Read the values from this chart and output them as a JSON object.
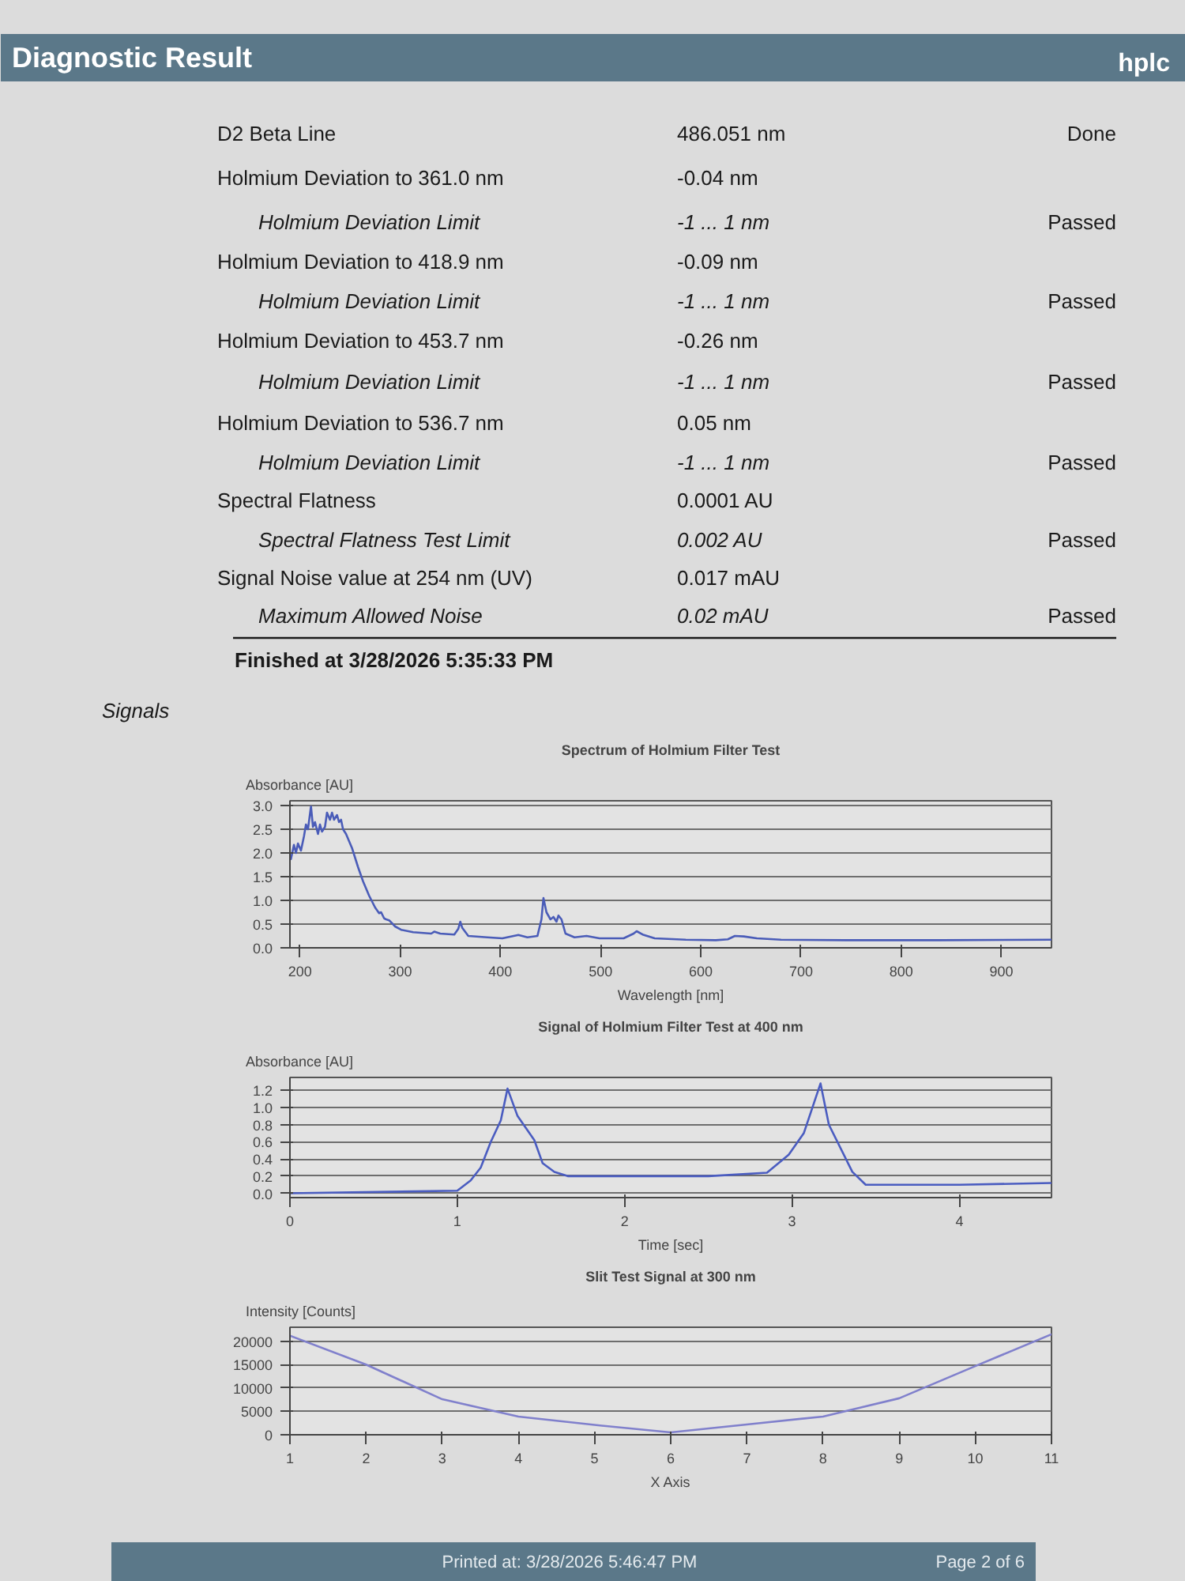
{
  "chart_data": [
    {
      "type": "other",
      "title": "Diagnostic Result",
      "subtitle": "hplc",
      "annotations": [
        "D2 Beta Line",
        "486.051 nm",
        "Done",
        "Holmium Deviation to 361.0 nm",
        "-0.04 nm",
        "Holmium Deviation Limit",
        "-1 ... 1 nm",
        "Passed",
        "Holmium Deviation to 418.9 nm",
        "-0.09 nm",
        "Holmium Deviation Limit",
        "-1 ... 1 nm",
        "Passed",
        "Holmium Deviation to 453.7 nm",
        "-0.26 nm",
        "Holmium Deviation Limit",
        "-1 ... 1 nm",
        "Passed",
        "Holmium Deviation to 536.7 nm",
        "0.05 nm",
        "Holmium Deviation Limit",
        "-1 ... 1 nm",
        "Passed",
        "Spectral Flatness",
        "0.0001 AU",
        "Spectral Flatness Test Limit",
        "0.002 AU",
        "Passed",
        "Signal Noise value at 254 nm (UV)",
        "0.017 mAU",
        "Maximum Allowed Noise",
        "0.02 mAU",
        "Passed",
        "Finished at 3/28/2026 5:35:33 PM",
        "Signals"
      ]
    },
    {
      "type": "line",
      "title": "Spectrum of Holmium Filter Test",
      "xlabel": "Wavelength [nm]",
      "ylabel": "Absorbance [AU]",
      "xlim": [
        190,
        950
      ],
      "ylim": [
        0,
        3.1
      ],
      "xticks": [
        200,
        300,
        400,
        500,
        600,
        700,
        800,
        900
      ],
      "yticks": [
        {
          "value": 0,
          "label": "0.0"
        },
        0.5,
        {
          "value": 1,
          "label": "1.0"
        },
        1.5,
        {
          "value": 2,
          "label": "2.0"
        },
        2.5,
        {
          "value": 3,
          "label": "3.0"
        }
      ],
      "grid": "y",
      "x": [
        191,
        194,
        196,
        198,
        201,
        204,
        206,
        208,
        211,
        213,
        215,
        218,
        220,
        222,
        225,
        227,
        230,
        232,
        234,
        237,
        239,
        241,
        243,
        246,
        252,
        258,
        263,
        269,
        275,
        279,
        281,
        284,
        286,
        289,
        295,
        301,
        313,
        331,
        334,
        340,
        354,
        358,
        360,
        362,
        368,
        387,
        402,
        418,
        427,
        437,
        441,
        443,
        446,
        450,
        453,
        456,
        458,
        461,
        465,
        474,
        486,
        499,
        523,
        533,
        536,
        542,
        554,
        585,
        615,
        627,
        634,
        643,
        656,
        680,
        744,
        839,
        950
      ],
      "series": [
        {
          "color": "#4a5cb8",
          "values": [
            1.87,
            2.17,
            2.0,
            2.2,
            2.05,
            2.35,
            2.6,
            2.5,
            2.98,
            2.55,
            2.65,
            2.4,
            2.6,
            2.45,
            2.55,
            2.85,
            2.7,
            2.85,
            2.7,
            2.8,
            2.65,
            2.7,
            2.5,
            2.4,
            2.1,
            1.7,
            1.4,
            1.1,
            0.85,
            0.73,
            0.75,
            0.62,
            0.6,
            0.58,
            0.45,
            0.38,
            0.33,
            0.3,
            0.34,
            0.3,
            0.28,
            0.4,
            0.55,
            0.42,
            0.25,
            0.22,
            0.2,
            0.27,
            0.22,
            0.25,
            0.6,
            1.05,
            0.75,
            0.6,
            0.65,
            0.55,
            0.68,
            0.6,
            0.3,
            0.22,
            0.25,
            0.2,
            0.2,
            0.3,
            0.35,
            0.28,
            0.2,
            0.17,
            0.16,
            0.18,
            0.25,
            0.24,
            0.2,
            0.17,
            0.16,
            0.16,
            0.17
          ]
        }
      ]
    },
    {
      "type": "line",
      "title": "Signal of Holmium Filter Test at 400 nm",
      "xlabel": "Time [sec]",
      "ylabel": "Absorbance [AU]",
      "xlim": [
        0,
        4.55
      ],
      "ylim": [
        -0.05,
        1.35
      ],
      "xticks": [
        0,
        1,
        2,
        3,
        4
      ],
      "yticks": [
        {
          "value": 0,
          "label": "0.0"
        },
        0.2,
        0.4,
        0.6,
        0.8,
        {
          "value": 1,
          "label": "1.0"
        },
        1.2
      ],
      "grid": "y",
      "x": [
        0,
        1.0,
        1.08,
        1.14,
        1.2,
        1.26,
        1.3,
        1.36,
        1.46,
        1.51,
        1.58,
        1.66,
        2.0,
        2.5,
        2.85,
        2.98,
        3.07,
        3.17,
        3.22,
        3.36,
        3.44,
        4.0,
        4.55
      ],
      "series": [
        {
          "color": "#4a5cc0",
          "values": [
            0.0,
            0.03,
            0.15,
            0.3,
            0.6,
            0.85,
            1.22,
            0.9,
            0.62,
            0.35,
            0.25,
            0.2,
            0.2,
            0.2,
            0.24,
            0.45,
            0.7,
            1.28,
            0.8,
            0.25,
            0.1,
            0.1,
            0.12
          ]
        }
      ]
    },
    {
      "type": "line",
      "title": "Slit Test Signal at 300 nm",
      "xlabel": "X Axis",
      "ylabel": "Intensity [Counts]",
      "xlim": [
        1,
        11
      ],
      "ylim": [
        0,
        23000
      ],
      "xticks": [
        1,
        2,
        3,
        4,
        5,
        6,
        7,
        8,
        9,
        10,
        11
      ],
      "yticks": [
        0,
        5000,
        10000,
        15000,
        20000
      ],
      "grid": "y",
      "x": [
        1,
        2,
        3,
        4,
        5,
        6,
        7,
        8,
        9,
        10,
        11
      ],
      "series": [
        {
          "color": "#8080cc",
          "values": [
            21200,
            15000,
            7600,
            3900,
            2100,
            500,
            2200,
            3900,
            7800,
            14700,
            21500
          ]
        }
      ]
    },
    {
      "type": "other",
      "annotations": [
        "Printed at: 3/28/2026 5:46:47 PM",
        "Page 2 of 6"
      ]
    }
  ]
}
